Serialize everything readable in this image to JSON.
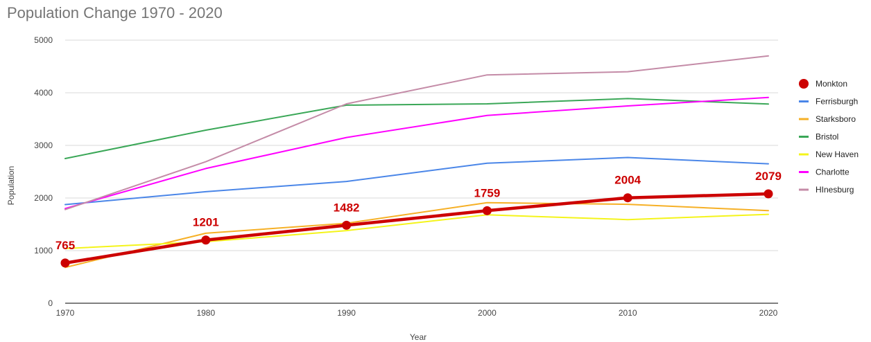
{
  "chart_data": {
    "type": "line",
    "title": "Population Change 1970 - 2020",
    "xlabel": "Year",
    "ylabel": "Population",
    "categories": [
      "1970",
      "1980",
      "1990",
      "2000",
      "2010",
      "2020"
    ],
    "ylim": [
      0,
      5000
    ],
    "yticks": [
      "0",
      "1000",
      "2000",
      "3000",
      "4000",
      "5000"
    ],
    "grid": true,
    "legend_position": "right",
    "series": [
      {
        "name": "Monkton",
        "color": "#cc0000",
        "values": [
          765,
          1201,
          1482,
          1759,
          2004,
          2079
        ],
        "markers": true,
        "data_labels": [
          "765",
          "1201",
          "1482",
          "1759",
          "2004",
          "2079"
        ]
      },
      {
        "name": "Ferrisburgh",
        "color": "#4a86e8",
        "values": [
          1875,
          2120,
          2315,
          2660,
          2770,
          2650
        ]
      },
      {
        "name": "Starksboro",
        "color": "#f6b026",
        "values": [
          680,
          1330,
          1520,
          1910,
          1880,
          1760
        ]
      },
      {
        "name": "Bristol",
        "color": "#3aa757",
        "values": [
          2750,
          3290,
          3765,
          3790,
          3890,
          3785
        ]
      },
      {
        "name": "New Haven",
        "color": "#f4f41a",
        "values": [
          1040,
          1170,
          1380,
          1680,
          1590,
          1690
        ]
      },
      {
        "name": "Charlotte",
        "color": "#ff00ff",
        "values": [
          1800,
          2560,
          3150,
          3570,
          3750,
          3910
        ]
      },
      {
        "name": "HInesburg",
        "color": "#c48ba7",
        "values": [
          1780,
          2690,
          3790,
          4340,
          4400,
          4700
        ]
      }
    ]
  }
}
